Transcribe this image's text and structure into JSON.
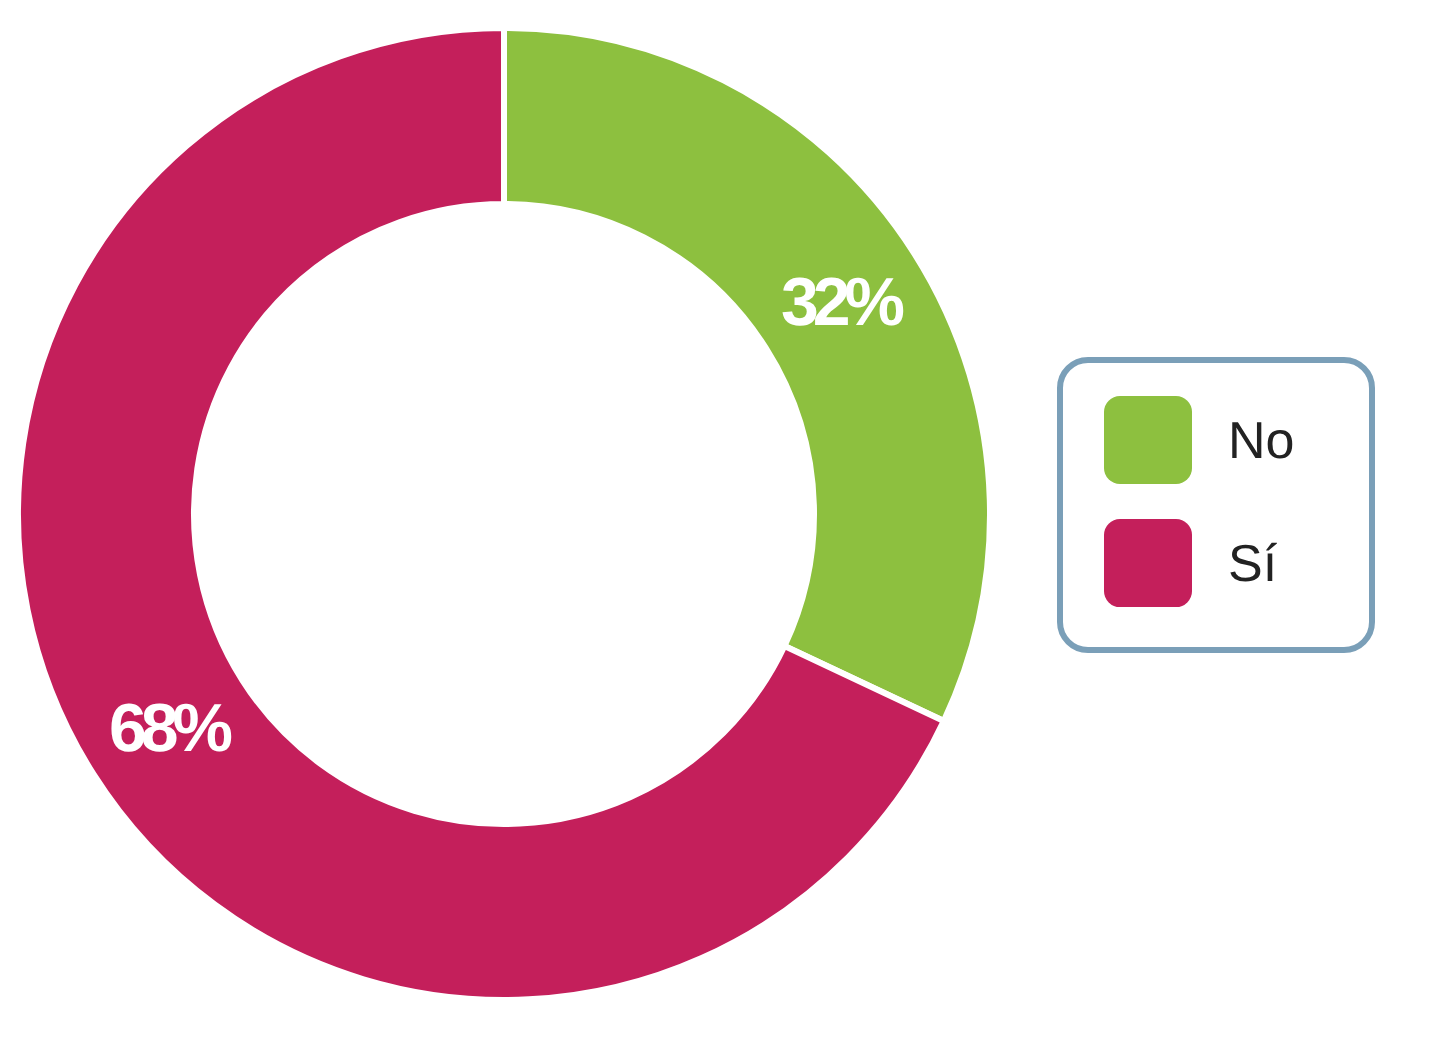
{
  "chart_data": {
    "type": "donut",
    "categories": [
      "No",
      "Sí"
    ],
    "values": [
      32,
      68
    ],
    "colors": [
      "#8dc03f",
      "#c41f5b"
    ],
    "value_labels": [
      "32%",
      "68%"
    ],
    "legend": "right"
  }
}
